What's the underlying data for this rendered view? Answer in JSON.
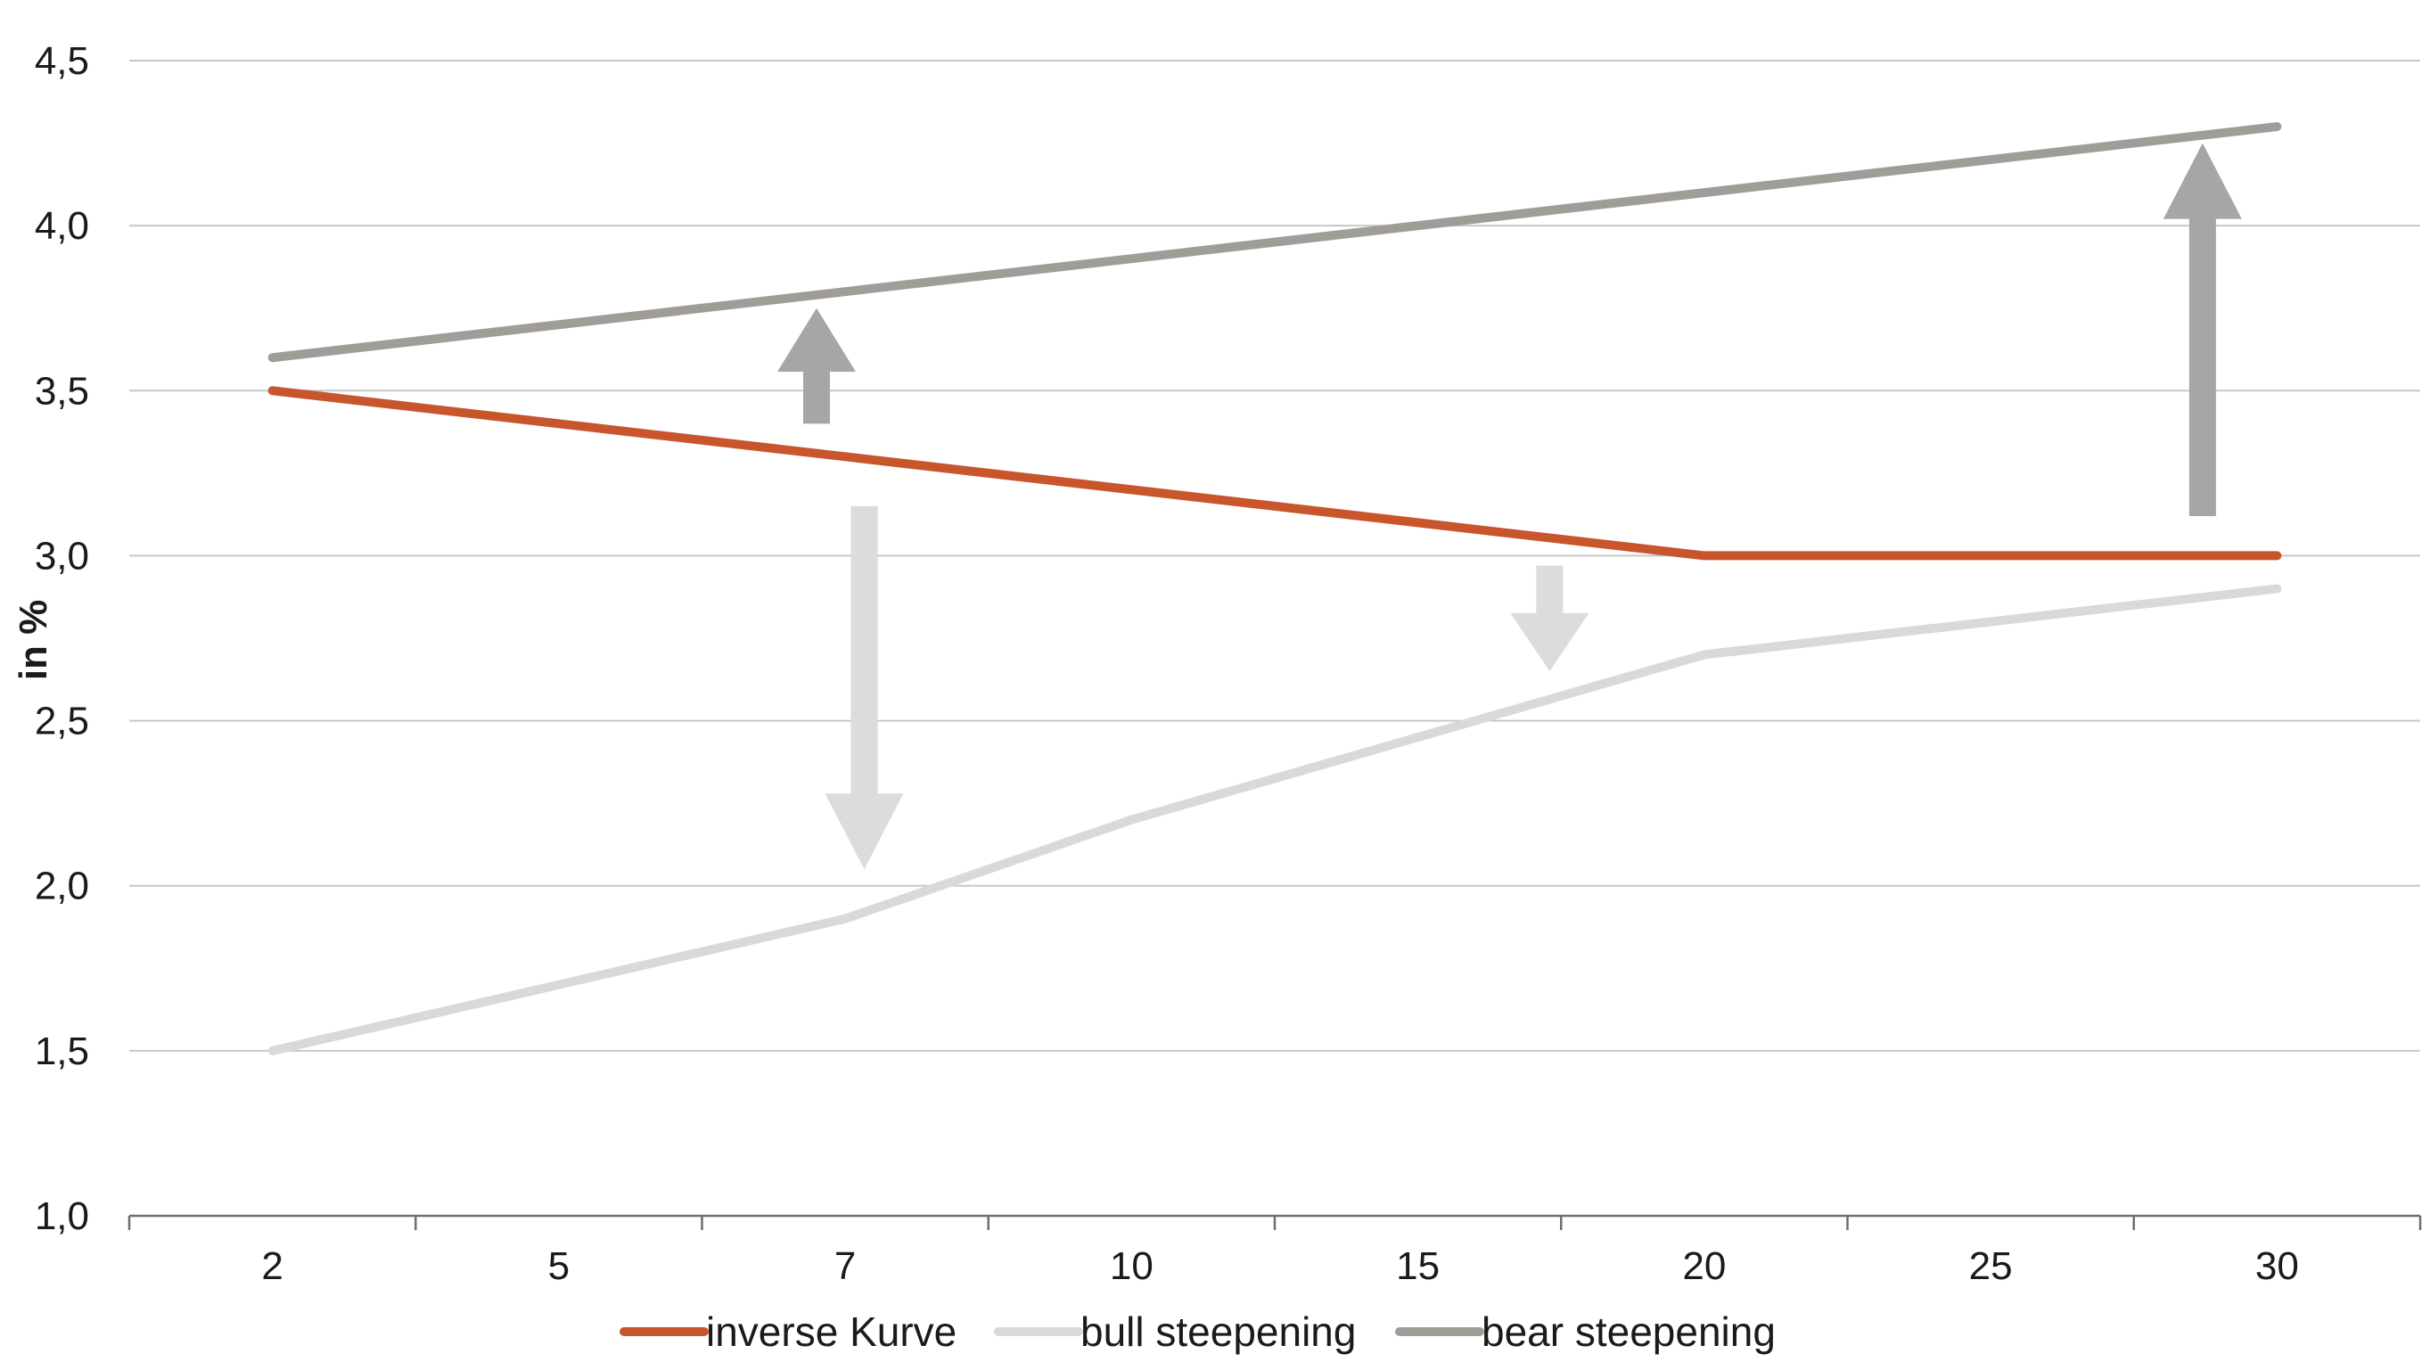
{
  "chart_data": {
    "type": "line",
    "title": "",
    "xlabel": "",
    "ylabel": "in %",
    "categories": [
      "2",
      "5",
      "7",
      "10",
      "15",
      "20",
      "25",
      "30"
    ],
    "y_tick_labels": [
      "1,0",
      "1,5",
      "2,0",
      "2,5",
      "3,0",
      "3,5",
      "4,0",
      "4,5"
    ],
    "ylim": [
      1.0,
      4.5
    ],
    "grid": true,
    "legend_position": "bottom",
    "series": [
      {
        "name": "inverse Kurve",
        "color": "#c8552c",
        "values": [
          3.5,
          3.4,
          3.3,
          3.2,
          3.1,
          3.0,
          3.0,
          3.0
        ]
      },
      {
        "name": "bull steepening",
        "color": "#d9d9d9",
        "values": [
          1.5,
          1.7,
          1.9,
          2.2,
          2.45,
          2.7,
          2.8,
          2.9
        ]
      },
      {
        "name": "bear steepening",
        "color": "#a09c98",
        "values": [
          3.6,
          3.7,
          3.8,
          3.9,
          4.0,
          4.1,
          4.2,
          4.3
        ]
      }
    ],
    "annotations": [
      {
        "type": "arrow",
        "direction": "up",
        "color": "#a6a6a6",
        "x_from": 6.8,
        "x_to": 6.8,
        "y_from": 3.4,
        "y_to": 3.75
      },
      {
        "type": "arrow",
        "direction": "down",
        "color": "#dcdcdc",
        "x_from": 7.2,
        "x_to": 7.2,
        "y_from": 3.15,
        "y_to": 2.05
      },
      {
        "type": "arrow",
        "direction": "down",
        "color": "#dcdcdc",
        "x_from": 17.3,
        "x_to": 17.3,
        "y_from": 2.97,
        "y_to": 2.65
      },
      {
        "type": "arrow",
        "direction": "up",
        "color": "#a6a6a6",
        "x_from": 28.7,
        "x_to": 28.7,
        "y_from": 3.12,
        "y_to": 4.25
      }
    ]
  }
}
